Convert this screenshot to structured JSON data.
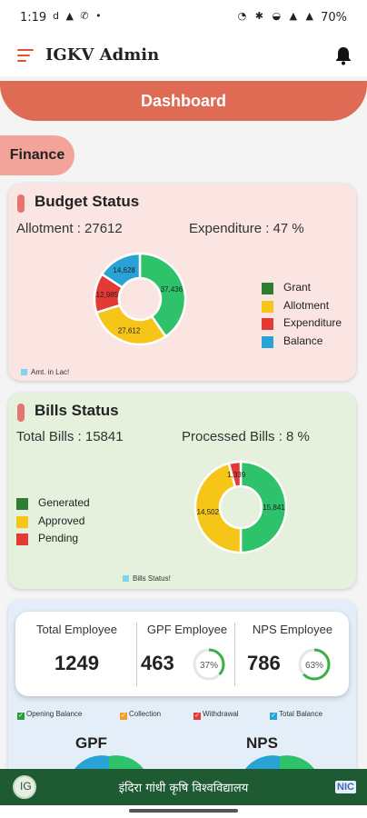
{
  "status_bar": {
    "time": "1:19",
    "left_icons": "d ▲ ✆ •",
    "right_icons": "◔ ✱ ◒ ▲ ▲",
    "battery": "70%"
  },
  "app": {
    "title": "IGKV Admin",
    "menu_icon": "menu-icon",
    "notification_icon": "bell-icon"
  },
  "dashboard_label": "Dashboard",
  "section_finance": "Finance",
  "budget": {
    "title": "Budget Status",
    "allotment_text": "Allotment : 27612",
    "expenditure_text": "Expenditure : 47 %",
    "legend": [
      {
        "label": "Grant",
        "color": "#2e7d32"
      },
      {
        "label": "Allotment",
        "color": "#f5c518"
      },
      {
        "label": "Expenditure",
        "color": "#e53935"
      },
      {
        "label": "Balance",
        "color": "#29a3d6"
      }
    ],
    "note": "Amt. in Lac!"
  },
  "bills": {
    "title": "Bills Status",
    "total_text": "Total Bills : 15841",
    "processed_text": "Processed Bills : 8 %",
    "legend": [
      {
        "label": "Generated",
        "color": "#2e7d32"
      },
      {
        "label": "Approved",
        "color": "#f5c518"
      },
      {
        "label": "Pending",
        "color": "#e53935"
      }
    ],
    "note": "Bills Status!"
  },
  "employees": {
    "total_label": "Total Employee",
    "total_value": "1249",
    "gpf_label": "GPF Employee",
    "gpf_value": "463",
    "gpf_percent": "37%",
    "gpf_fraction": 0.37,
    "nps_label": "NPS Employee",
    "nps_value": "786",
    "nps_percent": "63%",
    "nps_fraction": 0.63,
    "legend": [
      {
        "label": "Opening Balance",
        "color": "#2e9c3a"
      },
      {
        "label": "Collection",
        "color": "#f0a030"
      },
      {
        "label": "Withdrawal",
        "color": "#e53935"
      },
      {
        "label": "Total Balance",
        "color": "#29a3d6"
      }
    ],
    "gpf_title": "GPF",
    "nps_title": "NPS"
  },
  "footer": {
    "title": "इंदिरा गांधी कृषि विश्वविद्यालय",
    "logo_text": "IG",
    "badge": "NIC"
  },
  "chart_data": [
    {
      "type": "pie",
      "donut": true,
      "categories": [
        "Grant",
        "Allotment",
        "Expenditure",
        "Balance"
      ],
      "values": [
        37436,
        27612,
        12985,
        14628
      ],
      "labels": [
        "37,436",
        "27,612",
        "12,985",
        "14,628"
      ],
      "colors": [
        "#2ec26a",
        "#f5c518",
        "#e53935",
        "#29a3d6"
      ]
    },
    {
      "type": "pie",
      "donut": true,
      "categories": [
        "Generated",
        "Approved",
        "Pending"
      ],
      "values": [
        15841,
        14502,
        1339
      ],
      "labels": [
        "15,841",
        "14,502",
        "1,339"
      ],
      "colors": [
        "#2ec26a",
        "#f5c518",
        "#e53935"
      ]
    }
  ]
}
